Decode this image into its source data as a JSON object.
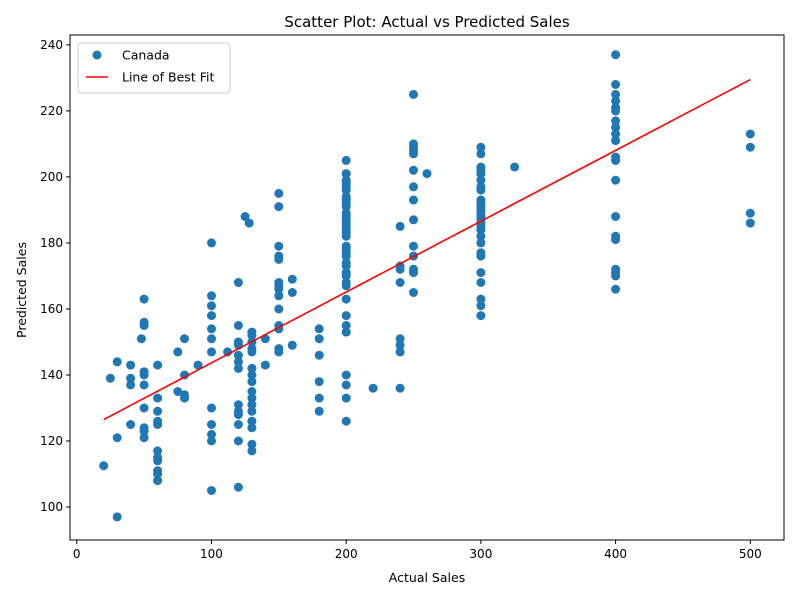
{
  "chart_data": {
    "type": "scatter",
    "title": "Scatter Plot: Actual vs Predicted Sales",
    "xlabel": "Actual Sales",
    "ylabel": "Predicted Sales",
    "xlim": [
      -5,
      525
    ],
    "ylim": [
      90,
      243
    ],
    "x_ticks": [
      0,
      100,
      200,
      300,
      400,
      500
    ],
    "y_ticks": [
      100,
      120,
      140,
      160,
      180,
      200,
      220,
      240
    ],
    "grid": false,
    "legend_position": "top-left",
    "series": [
      {
        "name": "Canada",
        "kind": "points",
        "color": "#1f77b4",
        "points": [
          [
            20,
            112.5
          ],
          [
            25,
            139
          ],
          [
            30,
            144
          ],
          [
            30,
            121
          ],
          [
            30,
            97
          ],
          [
            40,
            143
          ],
          [
            40,
            139
          ],
          [
            40,
            137
          ],
          [
            40,
            125
          ],
          [
            48,
            151
          ],
          [
            50,
            163
          ],
          [
            50,
            156
          ],
          [
            50,
            155
          ],
          [
            50,
            141
          ],
          [
            50,
            140
          ],
          [
            50,
            137
          ],
          [
            50,
            130
          ],
          [
            50,
            124
          ],
          [
            50,
            123
          ],
          [
            50,
            121
          ],
          [
            60,
            143
          ],
          [
            60,
            133
          ],
          [
            60,
            129
          ],
          [
            60,
            126
          ],
          [
            60,
            125
          ],
          [
            60,
            117
          ],
          [
            60,
            115
          ],
          [
            60,
            114
          ],
          [
            60,
            111
          ],
          [
            60,
            110
          ],
          [
            60,
            108
          ],
          [
            75,
            147
          ],
          [
            75,
            135
          ],
          [
            80,
            151
          ],
          [
            80,
            140
          ],
          [
            80,
            134
          ],
          [
            80,
            133
          ],
          [
            90,
            143
          ],
          [
            100,
            180
          ],
          [
            100,
            164
          ],
          [
            100,
            161
          ],
          [
            100,
            158
          ],
          [
            100,
            154
          ],
          [
            100,
            151
          ],
          [
            100,
            147
          ],
          [
            100,
            130
          ],
          [
            100,
            125
          ],
          [
            100,
            122
          ],
          [
            100,
            120
          ],
          [
            100,
            105
          ],
          [
            112,
            147
          ],
          [
            120,
            168
          ],
          [
            120,
            155
          ],
          [
            120,
            150
          ],
          [
            120,
            149
          ],
          [
            120,
            146
          ],
          [
            120,
            144
          ],
          [
            120,
            142
          ],
          [
            120,
            131
          ],
          [
            120,
            129
          ],
          [
            120,
            128
          ],
          [
            120,
            125
          ],
          [
            120,
            120
          ],
          [
            120,
            106
          ],
          [
            125,
            188
          ],
          [
            128,
            186
          ],
          [
            130,
            153
          ],
          [
            130,
            152
          ],
          [
            130,
            150
          ],
          [
            130,
            148
          ],
          [
            130,
            147
          ],
          [
            130,
            142
          ],
          [
            130,
            140
          ],
          [
            130,
            138
          ],
          [
            130,
            135
          ],
          [
            130,
            133
          ],
          [
            130,
            131
          ],
          [
            130,
            129
          ],
          [
            130,
            126
          ],
          [
            130,
            124
          ],
          [
            130,
            119
          ],
          [
            130,
            117
          ],
          [
            140,
            151
          ],
          [
            140,
            143
          ],
          [
            150,
            195
          ],
          [
            150,
            191
          ],
          [
            150,
            179
          ],
          [
            150,
            176
          ],
          [
            150,
            175
          ],
          [
            150,
            168
          ],
          [
            150,
            167
          ],
          [
            150,
            166
          ],
          [
            150,
            164
          ],
          [
            150,
            160
          ],
          [
            150,
            155
          ],
          [
            150,
            154
          ],
          [
            150,
            148
          ],
          [
            150,
            147
          ],
          [
            160,
            169
          ],
          [
            160,
            165
          ],
          [
            160,
            149
          ],
          [
            180,
            154
          ],
          [
            180,
            151
          ],
          [
            180,
            146
          ],
          [
            180,
            138
          ],
          [
            180,
            133
          ],
          [
            180,
            129
          ],
          [
            200,
            205
          ],
          [
            200,
            201
          ],
          [
            200,
            199
          ],
          [
            200,
            198
          ],
          [
            200,
            197
          ],
          [
            200,
            196
          ],
          [
            200,
            194
          ],
          [
            200,
            193
          ],
          [
            200,
            192
          ],
          [
            200,
            191
          ],
          [
            200,
            189
          ],
          [
            200,
            188
          ],
          [
            200,
            187
          ],
          [
            200,
            186
          ],
          [
            200,
            185
          ],
          [
            200,
            184
          ],
          [
            200,
            183
          ],
          [
            200,
            182
          ],
          [
            200,
            179
          ],
          [
            200,
            178
          ],
          [
            200,
            177
          ],
          [
            200,
            176
          ],
          [
            200,
            174
          ],
          [
            200,
            173
          ],
          [
            200,
            171
          ],
          [
            200,
            170
          ],
          [
            200,
            168
          ],
          [
            200,
            167
          ],
          [
            200,
            163
          ],
          [
            200,
            158
          ],
          [
            200,
            155
          ],
          [
            200,
            153
          ],
          [
            200,
            140
          ],
          [
            200,
            137
          ],
          [
            200,
            133
          ],
          [
            200,
            126
          ],
          [
            220,
            136
          ],
          [
            240,
            185
          ],
          [
            240,
            173
          ],
          [
            240,
            172
          ],
          [
            240,
            168
          ],
          [
            240,
            151
          ],
          [
            240,
            149
          ],
          [
            240,
            147
          ],
          [
            240,
            136
          ],
          [
            250,
            225
          ],
          [
            250,
            210
          ],
          [
            250,
            209
          ],
          [
            250,
            208
          ],
          [
            250,
            207
          ],
          [
            250,
            202
          ],
          [
            250,
            197
          ],
          [
            250,
            193
          ],
          [
            250,
            187
          ],
          [
            250,
            179
          ],
          [
            250,
            176
          ],
          [
            250,
            172
          ],
          [
            250,
            171
          ],
          [
            250,
            165
          ],
          [
            260,
            201
          ],
          [
            300,
            209
          ],
          [
            300,
            207
          ],
          [
            300,
            203
          ],
          [
            300,
            202
          ],
          [
            300,
            201
          ],
          [
            300,
            199
          ],
          [
            300,
            197
          ],
          [
            300,
            196
          ],
          [
            300,
            193
          ],
          [
            300,
            192
          ],
          [
            300,
            191
          ],
          [
            300,
            190
          ],
          [
            300,
            189
          ],
          [
            300,
            188
          ],
          [
            300,
            187
          ],
          [
            300,
            186
          ],
          [
            300,
            185
          ],
          [
            300,
            184
          ],
          [
            300,
            182
          ],
          [
            300,
            180
          ],
          [
            300,
            177
          ],
          [
            300,
            176
          ],
          [
            300,
            171
          ],
          [
            300,
            168
          ],
          [
            300,
            163
          ],
          [
            300,
            161
          ],
          [
            300,
            158
          ],
          [
            325,
            203
          ],
          [
            400,
            237
          ],
          [
            400,
            228
          ],
          [
            400,
            225
          ],
          [
            400,
            223
          ],
          [
            400,
            221
          ],
          [
            400,
            220
          ],
          [
            400,
            217
          ],
          [
            400,
            215
          ],
          [
            400,
            213
          ],
          [
            400,
            211
          ],
          [
            400,
            206
          ],
          [
            400,
            205
          ],
          [
            400,
            199
          ],
          [
            400,
            188
          ],
          [
            400,
            182
          ],
          [
            400,
            181
          ],
          [
            400,
            172
          ],
          [
            400,
            171
          ],
          [
            400,
            170
          ],
          [
            400,
            166
          ],
          [
            500,
            213
          ],
          [
            500,
            209
          ],
          [
            500,
            189
          ],
          [
            500,
            186
          ]
        ]
      },
      {
        "name": "Line of Best Fit",
        "kind": "line",
        "color": "#ff0000",
        "x": [
          20,
          500
        ],
        "y": [
          126.5,
          229.5
        ]
      }
    ]
  }
}
